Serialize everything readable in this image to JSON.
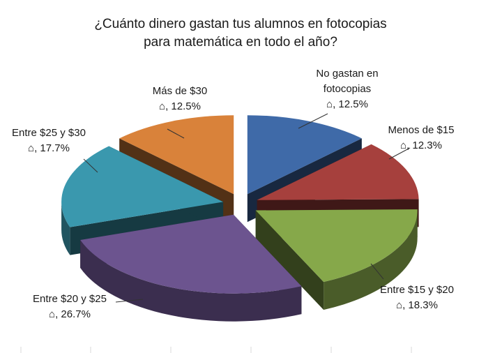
{
  "chart_data": {
    "type": "pie",
    "title_lines": [
      "¿Cuánto dinero gastan tus alumnos en fotocopias",
      "para matemática en todo el año?"
    ],
    "categories": [
      "No gastan en fotocopias",
      "Menos de $15",
      "Entre $15 y $20",
      "Entre $20 y $25",
      "Entre $25 y $30",
      "Más de $30"
    ],
    "values": [
      12.5,
      12.3,
      18.3,
      26.7,
      17.7,
      12.5
    ],
    "value_labels": [
      "⌂, 12.5%",
      "⌂, 12.3%",
      "⌂, 18.3%",
      "⌂, 26.7%",
      "⌂, 17.7%",
      "⌂, 12.5%"
    ],
    "category_label_lines": [
      [
        "No gastan en",
        "fotocopias"
      ],
      [
        "Menos de $15"
      ],
      [
        "Entre $15 y $20"
      ],
      [
        "Entre $20 y $25"
      ],
      [
        "Entre $25 y $30"
      ],
      [
        "Más de $30"
      ]
    ],
    "colors": [
      "#3f6aa8",
      "#a6403d",
      "#86a84a",
      "#6c548f",
      "#3a98ae",
      "#d9823a"
    ],
    "style": "3d-exploded",
    "legend": "none"
  }
}
